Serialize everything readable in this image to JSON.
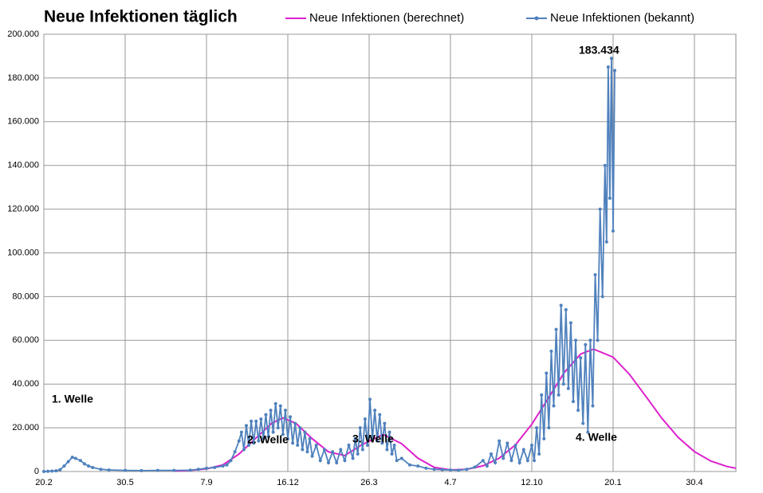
{
  "chart_data": {
    "type": "line",
    "title": "Neue Infektionen täglich",
    "annotations": [
      "1. Welle",
      "2. Welle",
      "3. Welle",
      "4. Welle",
      "183.434"
    ],
    "xlim": [
      0,
      851
    ],
    "xticks": [
      {
        "value": 0,
        "label": "20.2"
      },
      {
        "value": 100,
        "label": "30.5"
      },
      {
        "value": 200,
        "label": "7.9"
      },
      {
        "value": 300,
        "label": "16.12"
      },
      {
        "value": 400,
        "label": "26.3"
      },
      {
        "value": 500,
        "label": "4.7"
      },
      {
        "value": 600,
        "label": "12.10"
      },
      {
        "value": 700,
        "label": "20.1"
      },
      {
        "value": 800,
        "label": "30.4"
      }
    ],
    "ylim": [
      0,
      200000
    ],
    "yticks": [
      0,
      {
        "value": 20000,
        "label": "20.000"
      },
      {
        "value": 40000,
        "label": "40.000"
      },
      {
        "value": 60000,
        "label": "60.000"
      },
      {
        "value": 80000,
        "label": "80.000"
      },
      {
        "value": 100000,
        "label": "100.000"
      },
      {
        "value": 120000,
        "label": "120.000"
      },
      {
        "value": 140000,
        "label": "140.000"
      },
      {
        "value": 160000,
        "label": "160.000"
      },
      {
        "value": 180000,
        "label": "180.000"
      },
      {
        "value": 200000,
        "label": "200.000"
      }
    ],
    "grid": true,
    "series": [
      {
        "name": "Neue Infektionen (berechnet)",
        "color": "#dd22cc",
        "markers": false,
        "x": [
          160,
          180,
          200,
          220,
          240,
          260,
          280,
          294,
          310,
          330,
          350,
          370,
          390,
          417,
          440,
          460,
          480,
          500,
          520,
          540,
          560,
          580,
          600,
          620,
          640,
          660,
          676,
          700,
          720,
          740,
          760,
          780,
          800,
          820,
          840,
          851
        ],
        "values": [
          200,
          500,
          1200,
          3000,
          8000,
          15000,
          22000,
          24500,
          22000,
          15000,
          9000,
          7300,
          12000,
          17000,
          12700,
          6100,
          1900,
          740,
          1000,
          2600,
          6100,
          12200,
          21600,
          33300,
          45300,
          53700,
          56000,
          52300,
          44500,
          34500,
          24300,
          15600,
          9100,
          4800,
          2300,
          1500
        ]
      },
      {
        "name": "Neue Infektionen (bekannt)",
        "color": "#4f81bd",
        "markers": true,
        "x": [
          0,
          5,
          10,
          15,
          20,
          25,
          30,
          35,
          39,
          45,
          50,
          55,
          60,
          70,
          80,
          100,
          120,
          140,
          160,
          180,
          190,
          200,
          210,
          220,
          225,
          230,
          235,
          240,
          243,
          246,
          249,
          252,
          255,
          258,
          261,
          264,
          267,
          270,
          273,
          276,
          279,
          282,
          285,
          288,
          291,
          294,
          297,
          300,
          303,
          306,
          309,
          312,
          315,
          318,
          321,
          324,
          327,
          330,
          335,
          340,
          345,
          350,
          355,
          360,
          365,
          370,
          375,
          380,
          383,
          386,
          389,
          392,
          395,
          398,
          401,
          404,
          407,
          410,
          413,
          416,
          419,
          422,
          425,
          428,
          431,
          434,
          440,
          450,
          460,
          470,
          480,
          490,
          500,
          510,
          520,
          530,
          540,
          545,
          550,
          555,
          560,
          565,
          570,
          575,
          580,
          585,
          590,
          595,
          600,
          603,
          606,
          609,
          612,
          615,
          618,
          621,
          624,
          627,
          630,
          633,
          636,
          639,
          642,
          645,
          648,
          651,
          654,
          657,
          660,
          663,
          666,
          669,
          672,
          675,
          678,
          681,
          684,
          687,
          690,
          692,
          694,
          696,
          698,
          700,
          702
        ],
        "values": [
          0,
          100,
          200,
          300,
          800,
          2500,
          4500,
          6500,
          6000,
          5000,
          3500,
          2500,
          1800,
          1000,
          700,
          500,
          400,
          500,
          500,
          600,
          1000,
          1500,
          1800,
          2500,
          3000,
          5000,
          9000,
          14000,
          18000,
          10000,
          21000,
          12000,
          23000,
          13000,
          23000,
          14000,
          24000,
          15000,
          26000,
          16000,
          28000,
          18000,
          31000,
          20000,
          30000,
          17000,
          28000,
          15000,
          25000,
          13000,
          22000,
          12000,
          20000,
          10000,
          18000,
          9000,
          15000,
          7000,
          12000,
          5000,
          10000,
          4000,
          9000,
          4000,
          10000,
          5000,
          12000,
          6000,
          15000,
          8000,
          20000,
          10000,
          24000,
          12000,
          33000,
          15000,
          28000,
          14000,
          26000,
          13000,
          22000,
          10000,
          18000,
          8000,
          12000,
          5000,
          6000,
          3000,
          2500,
          1500,
          1000,
          800,
          700,
          600,
          1000,
          2000,
          5000,
          2500,
          8000,
          4000,
          14000,
          6000,
          13000,
          5000,
          12000,
          4000,
          10000,
          5000,
          12000,
          5000,
          20000,
          8000,
          35000,
          15000,
          45000,
          20000,
          55000,
          30000,
          65000,
          35000,
          76000,
          40000,
          74000,
          38000,
          68000,
          32000,
          60000,
          28000,
          52000,
          22000,
          58000,
          18000,
          60000,
          30000,
          90000,
          60000,
          120000,
          80000,
          140000,
          105000,
          185000,
          125000,
          189000,
          110000,
          183434
        ]
      }
    ]
  }
}
